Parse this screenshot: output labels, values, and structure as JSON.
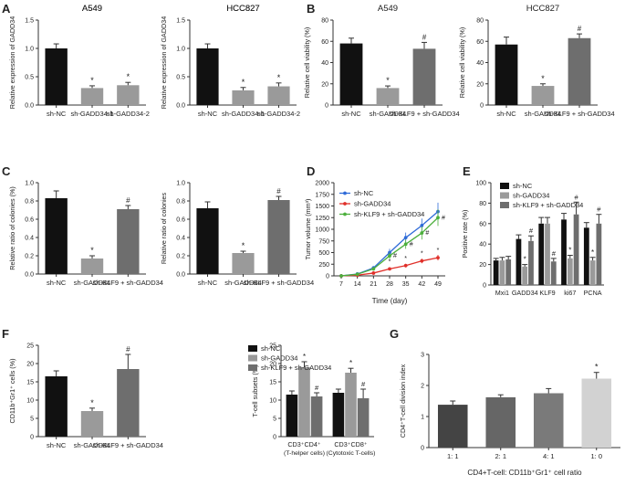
{
  "panel_letters": [
    "A",
    "B",
    "C",
    "D",
    "E",
    "F",
    "G"
  ],
  "chart_data": [
    {
      "id": "A1",
      "panel": "A",
      "type": "bar",
      "title": "A549",
      "xlabel": "",
      "ylabel": "Relative expression of GADD34",
      "ylim": [
        0,
        1.5
      ],
      "yticks": [
        "0.0",
        "0.5",
        "1.0",
        "1.5"
      ],
      "categories": [
        "sh-NC",
        "sh-GADD34-1",
        "sh-GADD34-2"
      ],
      "values": [
        1.0,
        0.3,
        0.35
      ],
      "errors": [
        0.08,
        0.04,
        0.05
      ],
      "marks": [
        "",
        "*",
        "*"
      ],
      "colors": [
        "#111111",
        "#9a9a9a",
        "#9a9a9a"
      ]
    },
    {
      "id": "A2",
      "panel": "A",
      "type": "bar",
      "title": "HCC827",
      "xlabel": "",
      "ylabel": "Relative expression of GADD34",
      "ylim": [
        0,
        1.5
      ],
      "yticks": [
        "0.0",
        "0.5",
        "1.0",
        "1.5"
      ],
      "categories": [
        "sh-NC",
        "sh-GADD34-1",
        "sh-GADD34-2"
      ],
      "values": [
        1.0,
        0.26,
        0.33
      ],
      "errors": [
        0.08,
        0.05,
        0.06
      ],
      "marks": [
        "",
        "*",
        "*"
      ],
      "colors": [
        "#111111",
        "#9a9a9a",
        "#9a9a9a"
      ]
    },
    {
      "id": "B1",
      "panel": "B",
      "type": "bar",
      "title": "A549",
      "xlabel": "",
      "ylabel": "Relative cell viability (%)",
      "ylim": [
        0,
        80
      ],
      "yticks": [
        "0",
        "20",
        "40",
        "60",
        "80"
      ],
      "categories": [
        "sh-NC",
        "sh-GADD34",
        "sh-KLF9 + sh-GADD34"
      ],
      "values": [
        58,
        16,
        53
      ],
      "errors": [
        5,
        2,
        6
      ],
      "marks": [
        "",
        "*",
        "#"
      ],
      "colors": [
        "#111111",
        "#9a9a9a",
        "#6e6e6e"
      ]
    },
    {
      "id": "B2",
      "panel": "B",
      "type": "bar",
      "title": "HCC827",
      "xlabel": "",
      "ylabel": "Relative cell viability (%)",
      "ylim": [
        0,
        80
      ],
      "yticks": [
        "0",
        "20",
        "40",
        "60",
        "80"
      ],
      "categories": [
        "sh-NC",
        "sh-GADD34",
        "sh-KLF9 + sh-GADD34"
      ],
      "values": [
        57,
        18,
        63
      ],
      "errors": [
        7,
        2,
        4
      ],
      "marks": [
        "",
        "*",
        "#"
      ],
      "colors": [
        "#111111",
        "#9a9a9a",
        "#6e6e6e"
      ]
    },
    {
      "id": "C1",
      "panel": "C",
      "type": "bar",
      "title": "A549",
      "xlabel": "",
      "ylabel": "Relative ratio of colonies (%)",
      "ylim": [
        0,
        1.0
      ],
      "yticks": [
        "0.0",
        "0.2",
        "0.4",
        "0.6",
        "0.8",
        "1.0"
      ],
      "categories": [
        "sh-NC",
        "sh-GADD34",
        "sh-KLF9 + sh-GADD34"
      ],
      "values": [
        0.83,
        0.17,
        0.71
      ],
      "errors": [
        0.08,
        0.03,
        0.04
      ],
      "marks": [
        "",
        "*",
        "#"
      ],
      "colors": [
        "#111111",
        "#9a9a9a",
        "#6e6e6e"
      ]
    },
    {
      "id": "C2",
      "panel": "C",
      "type": "bar",
      "title": "HCC827",
      "xlabel": "",
      "ylabel": "Relative ratio of colonies",
      "ylim": [
        0,
        1.0
      ],
      "yticks": [
        "0.0",
        "0.2",
        "0.4",
        "0.6",
        "0.8",
        "1.0"
      ],
      "categories": [
        "sh-NC",
        "sh-GADD34",
        "sh-KLF9 + sh-GADD34"
      ],
      "values": [
        0.72,
        0.23,
        0.81
      ],
      "errors": [
        0.07,
        0.02,
        0.04
      ],
      "marks": [
        "",
        "*",
        "#"
      ],
      "colors": [
        "#111111",
        "#9a9a9a",
        "#6e6e6e"
      ]
    },
    {
      "id": "D",
      "panel": "D",
      "type": "line",
      "title": "",
      "xlabel": "Time (day)",
      "ylabel": "Tumor volume (mm³)",
      "x": [
        7,
        14,
        21,
        28,
        35,
        42,
        49
      ],
      "ylim": [
        0,
        2000
      ],
      "yticks": [
        "0",
        "250",
        "500",
        "750",
        "1000",
        "1250",
        "1500",
        "1750",
        "2000"
      ],
      "series": [
        {
          "name": "sh-NC",
          "color": "#2f6bd8",
          "values": [
            0,
            40,
            170,
            500,
            820,
            1080,
            1380
          ],
          "errors": [
            0,
            20,
            40,
            80,
            110,
            150,
            190
          ],
          "marks": [
            "",
            "",
            "",
            "",
            "",
            "",
            ""
          ]
        },
        {
          "name": "sh-GADD34",
          "color": "#e0302a",
          "values": [
            0,
            15,
            60,
            150,
            220,
            320,
            390
          ],
          "errors": [
            0,
            10,
            20,
            30,
            40,
            50,
            60
          ],
          "marks": [
            "",
            "",
            "",
            "*",
            "*",
            "*",
            "*"
          ]
        },
        {
          "name": "sh-KLF9 + sh-GADD34",
          "color": "#4caf3c",
          "values": [
            0,
            35,
            150,
            430,
            680,
            920,
            1250
          ],
          "errors": [
            0,
            20,
            40,
            70,
            100,
            140,
            180
          ],
          "marks": [
            "",
            "",
            "",
            "#",
            "#",
            "#",
            "#"
          ]
        }
      ]
    },
    {
      "id": "E",
      "panel": "E",
      "type": "bar",
      "title": "",
      "xlabel": "",
      "ylabel": "Positive rate (%)",
      "ylim": [
        0,
        100
      ],
      "yticks": [
        "0",
        "20",
        "40",
        "60",
        "80",
        "100"
      ],
      "categories": [
        "Mxi1",
        "GADD34",
        "KLF9",
        "ki67",
        "PCNA"
      ],
      "series": [
        {
          "name": "sh-NC",
          "color": "#111111",
          "values": [
            24,
            45,
            60,
            64,
            56
          ],
          "errors": [
            2,
            4,
            6,
            6,
            5
          ],
          "marks": [
            "",
            "",
            "",
            "",
            ""
          ]
        },
        {
          "name": "sh-GADD34",
          "color": "#9a9a9a",
          "values": [
            24,
            18,
            60,
            26,
            24
          ],
          "errors": [
            3,
            2,
            6,
            3,
            3
          ],
          "marks": [
            "",
            "*",
            "",
            "*",
            "*"
          ]
        },
        {
          "name": "sh-KLF9 + sh-GADD34",
          "color": "#6e6e6e",
          "values": [
            25,
            43,
            23,
            69,
            60
          ],
          "errors": [
            3,
            5,
            3,
            12,
            9
          ],
          "marks": [
            "",
            "#",
            "#",
            "#",
            "#"
          ]
        }
      ]
    },
    {
      "id": "F1",
      "panel": "F",
      "type": "bar",
      "title": "",
      "xlabel": "",
      "ylabel": "CD11b⁺Gr1⁺ cells (%)",
      "ylim": [
        0,
        25
      ],
      "yticks": [
        "0",
        "5",
        "10",
        "15",
        "20",
        "25"
      ],
      "categories": [
        "sh-NC",
        "sh-GADD34",
        "sh-KLF9 + sh-GADD34"
      ],
      "values": [
        16.5,
        7,
        18.5
      ],
      "errors": [
        1.5,
        0.8,
        4
      ],
      "marks": [
        "",
        "*",
        "#"
      ],
      "colors": [
        "#111111",
        "#9a9a9a",
        "#6e6e6e"
      ]
    },
    {
      "id": "F2",
      "panel": "F",
      "type": "bar",
      "title": "",
      "xlabel": "",
      "ylabel": "T-cell subsets (%)",
      "ylim": [
        0,
        25
      ],
      "yticks": [
        "0",
        "5",
        "10",
        "15",
        "20",
        "25"
      ],
      "categories": [
        "CD3⁺CD4⁺",
        "CD3⁺CD8⁺"
      ],
      "category_sublabels": [
        "(T-helper cells)",
        "(Cytotoxic T-cells)"
      ],
      "series": [
        {
          "name": "sh-NC",
          "color": "#111111",
          "values": [
            11.5,
            12
          ],
          "errors": [
            1,
            1
          ],
          "marks": [
            "",
            ""
          ]
        },
        {
          "name": "sh-GADD34",
          "color": "#9a9a9a",
          "values": [
            19,
            17.5
          ],
          "errors": [
            1.5,
            1.2
          ],
          "marks": [
            "*",
            "*"
          ]
        },
        {
          "name": "sh-KLF9 + sh-GADD34",
          "color": "#6e6e6e",
          "values": [
            11,
            10.5
          ],
          "errors": [
            1,
            2.5
          ],
          "marks": [
            "#",
            "#"
          ]
        }
      ]
    },
    {
      "id": "G",
      "panel": "G",
      "type": "bar",
      "title": "",
      "xlabel": "CD4+T-cell: CD11b⁺Gr1⁺ cell ratio",
      "ylabel": "CD4⁺T-cell division index",
      "ylim": [
        0,
        3
      ],
      "yticks": [
        "0",
        "1",
        "2",
        "3"
      ],
      "categories": [
        "1: 1",
        "2: 1",
        "4: 1",
        "1: 0"
      ],
      "values": [
        1.38,
        1.62,
        1.75,
        2.22
      ],
      "errors": [
        0.12,
        0.08,
        0.15,
        0.2
      ],
      "marks": [
        "",
        "",
        "",
        "*"
      ],
      "colors": [
        "#444444",
        "#666666",
        "#7a7a7a",
        "#d2d2d2"
      ]
    }
  ]
}
